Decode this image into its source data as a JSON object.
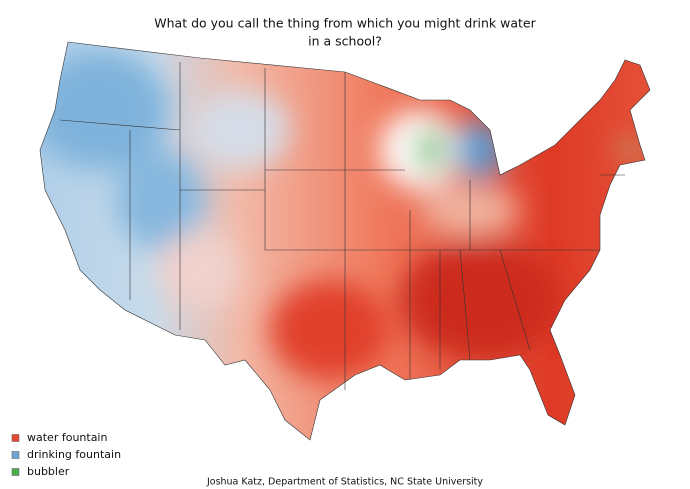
{
  "title_lines": [
    "What do you call the thing from which you might drink water",
    "in a school?"
  ],
  "legend": {
    "items": [
      {
        "label": "water fountain",
        "color": "#e34a33"
      },
      {
        "label": "drinking fountain",
        "color": "#6fa6d4"
      },
      {
        "label": "bubbler",
        "color": "#4dac4a"
      }
    ]
  },
  "credit": "Joshua Katz, Department of Statistics, NC State University"
}
